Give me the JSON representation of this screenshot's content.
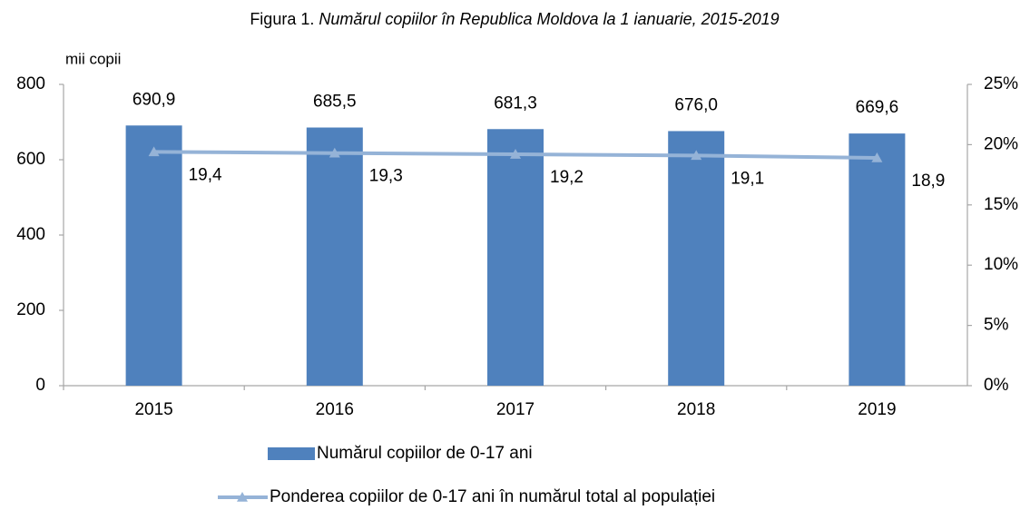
{
  "chart_data": {
    "type": "bar",
    "title": "Figura 1.",
    "subtitle": "Numărul copiilor în Republica Moldova la 1 ianuarie, 2015-2019",
    "y_label": "mii copii",
    "categories": [
      "2015",
      "2016",
      "2017",
      "2018",
      "2019"
    ],
    "series": [
      {
        "name": "Numărul copiilor de 0-17 ani",
        "type": "bar",
        "color": "#4f81bd",
        "values": [
          690.9,
          685.5,
          681.3,
          676.0,
          669.6
        ],
        "value_labels": [
          "690,9",
          "685,5",
          "681,3",
          "676,0",
          "669,6"
        ]
      },
      {
        "name": "Ponderea copiilor de 0-17 ani în numărul total al populației",
        "type": "line",
        "axis": "y2",
        "color": "#95b3d7",
        "values": [
          19.4,
          19.3,
          19.2,
          19.1,
          18.9
        ],
        "value_labels": [
          "19,4",
          "19,3",
          "19,2",
          "19,1",
          "18,9"
        ]
      }
    ],
    "ylim": [
      0,
      800
    ],
    "yticks": [
      0,
      200,
      400,
      600,
      800
    ],
    "y2lim": [
      0,
      25
    ],
    "y2ticks": [
      {
        "value": 0,
        "label": "0%"
      },
      {
        "value": 5,
        "label": "5%"
      },
      {
        "value": 10,
        "label": "10%"
      },
      {
        "value": 15,
        "label": "15%"
      },
      {
        "value": 20,
        "label": "20%"
      },
      {
        "value": 25,
        "label": "25%"
      }
    ],
    "legend": "bottom"
  }
}
